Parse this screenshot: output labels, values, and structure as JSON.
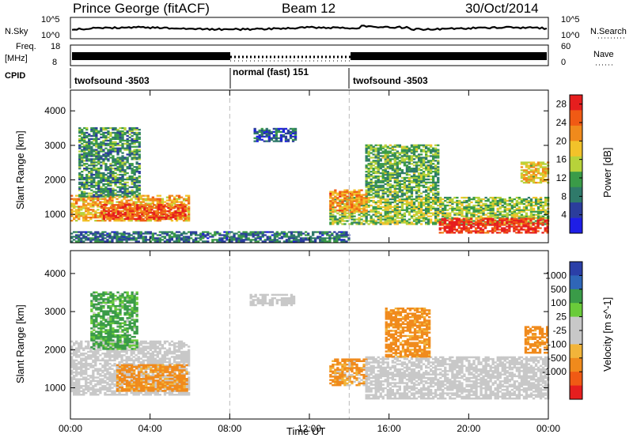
{
  "header": {
    "station": "Prince George (fitACF)",
    "beam": "Beam 12",
    "date": "30/Oct/2014"
  },
  "top_panels": {
    "nsky_label": "N.Sky",
    "nsky_ticks": [
      "10^5",
      "10^0"
    ],
    "nsearch_label": "N.Search",
    "nsearch_ticks": [
      "10^5",
      "10^0"
    ],
    "freq_label": "Freq.",
    "freq_unit": "[MHz]",
    "freq_ticks": [
      "18",
      "8"
    ],
    "nave_label": "Nave",
    "nave_ticks": [
      "60",
      "0"
    ],
    "cpid_label": "CPID",
    "cpid_segments": [
      {
        "label": "twofsound -3503",
        "start_h": 0,
        "end_h": 8
      },
      {
        "label": "normal (fast) 151",
        "start_h": 8,
        "end_h": 14
      },
      {
        "label": "twofsound -3503",
        "start_h": 14,
        "end_h": 24
      }
    ]
  },
  "colors": {
    "power_scale": [
      "#1e1ee6",
      "#2b3d9c",
      "#2f7a6a",
      "#3a9b48",
      "#b7d23a",
      "#f2c22a",
      "#f08a1c",
      "#f05a14",
      "#e61e1e"
    ],
    "velocity_scale": [
      "#2b3fa8",
      "#2f66b8",
      "#3a9b48",
      "#6acb3a",
      "#c8c8c8",
      "#c8c8c8",
      "#f2b43a",
      "#f08a1c",
      "#f05a14",
      "#e61e1e"
    ]
  },
  "chart_data": [
    {
      "type": "heatmap",
      "title": "",
      "xlabel": "Time UT",
      "ylabel": "Slant Range [km]",
      "x_ticks": [
        "00:00",
        "04:00",
        "08:00",
        "12:00",
        "16:00",
        "20:00",
        "00:00"
      ],
      "xlim_hours": [
        0,
        24
      ],
      "y_ticks": [
        1000,
        2000,
        3000,
        4000
      ],
      "ylim_km": [
        180,
        4600
      ],
      "colorbar_label": "Power [dB]",
      "colorbar_ticks": [
        4,
        8,
        12,
        16,
        20,
        24,
        28
      ],
      "colorbar_range": [
        0,
        30
      ],
      "mode_boundaries_hours": [
        8,
        14
      ],
      "regions": [
        {
          "t0": 0,
          "t1": 5.9,
          "r0": 800,
          "r1": 1550,
          "value": 20
        },
        {
          "t0": 1.5,
          "t1": 5.8,
          "r0": 850,
          "r1": 1300,
          "value": 26
        },
        {
          "t0": 0.4,
          "t1": 3.5,
          "r0": 1500,
          "r1": 3500,
          "value": 10
        },
        {
          "t0": 0,
          "t1": 14,
          "r0": 200,
          "r1": 500,
          "value": 8
        },
        {
          "t0": 9.2,
          "t1": 11.3,
          "r0": 3100,
          "r1": 3500,
          "value": 6
        },
        {
          "t0": 13.0,
          "t1": 24,
          "r0": 700,
          "r1": 1500,
          "value": 14
        },
        {
          "t0": 13.0,
          "t1": 14.8,
          "r0": 1050,
          "r1": 1700,
          "value": 22
        },
        {
          "t0": 18.5,
          "t1": 24,
          "r0": 450,
          "r1": 900,
          "value": 28
        },
        {
          "t0": 14.8,
          "t1": 18.5,
          "r0": 1500,
          "r1": 3000,
          "value": 12
        },
        {
          "t0": 22.6,
          "t1": 24,
          "r0": 1900,
          "r1": 2500,
          "value": 18
        }
      ]
    },
    {
      "type": "heatmap",
      "title": "",
      "xlabel": "Time UT",
      "ylabel": "Slant Range [km]",
      "x_ticks": [
        "00:00",
        "04:00",
        "08:00",
        "12:00",
        "16:00",
        "20:00",
        "00:00"
      ],
      "xlim_hours": [
        0,
        24
      ],
      "y_ticks": [
        1000,
        2000,
        3000,
        4000
      ],
      "ylim_km": [
        180,
        4600
      ],
      "colorbar_label": "Velocity [m s^-1]",
      "colorbar_ticks": [
        1000,
        500,
        100,
        25,
        -25,
        -100,
        -500,
        -1000
      ],
      "mode_boundaries_hours": [
        8,
        14
      ],
      "regions": [
        {
          "t0": 0,
          "t1": 5.9,
          "r0": 800,
          "r1": 2200,
          "value": 0
        },
        {
          "t0": 2.3,
          "t1": 5.8,
          "r0": 900,
          "r1": 1600,
          "value": -200
        },
        {
          "t0": 1.0,
          "t1": 3.4,
          "r0": 2000,
          "r1": 3500,
          "value": 150
        },
        {
          "t0": 13.0,
          "t1": 14.8,
          "r0": 1050,
          "r1": 1750,
          "value": -150
        },
        {
          "t0": 14.8,
          "t1": 24,
          "r0": 700,
          "r1": 1800,
          "value": 0
        },
        {
          "t0": 15.8,
          "t1": 18.0,
          "r0": 1800,
          "r1": 3100,
          "value": -200
        },
        {
          "t0": 22.8,
          "t1": 24,
          "r0": 1900,
          "r1": 2600,
          "value": -200
        },
        {
          "t0": 9.0,
          "t1": 11.2,
          "r0": 3150,
          "r1": 3450,
          "value": 0
        }
      ]
    }
  ]
}
